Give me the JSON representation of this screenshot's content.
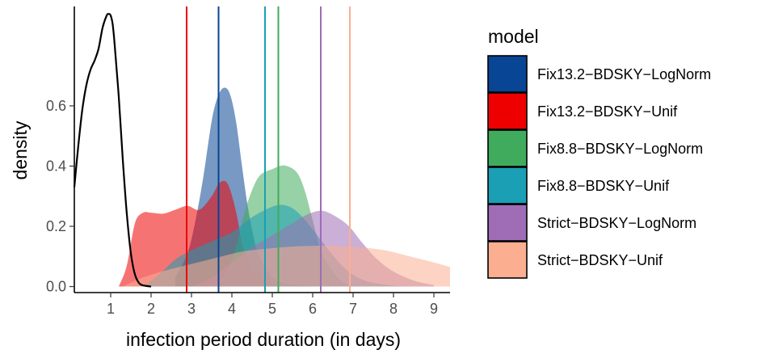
{
  "chart_data": {
    "type": "area",
    "xlabel": "infection period duration (in days)",
    "ylabel": "density",
    "xlim": [
      0.1,
      9.4
    ],
    "ylim": [
      -0.02,
      0.93
    ],
    "x_ticks": [
      1,
      2,
      3,
      4,
      5,
      6,
      7,
      8,
      9
    ],
    "x_tick_labels": [
      "1",
      "2",
      "3",
      "4",
      "5",
      "6",
      "7",
      "8",
      "9"
    ],
    "y_ticks": [
      0.0,
      0.2,
      0.4,
      0.6
    ],
    "y_tick_labels": [
      "0.0",
      "0.2",
      "0.4",
      "0.6"
    ],
    "grid": false,
    "legend": {
      "title": "model",
      "position": "right"
    },
    "series": [
      {
        "name": "Fix13.2−BDSKY−LogNorm",
        "color": "#084594",
        "vline": 3.67,
        "x": [
          2.6,
          2.9,
          3.1,
          3.3,
          3.5,
          3.65,
          3.8,
          3.95,
          4.1,
          4.25,
          4.4,
          4.6,
          4.8,
          5.0,
          5.3,
          5.6,
          6.0
        ],
        "y": [
          0.03,
          0.11,
          0.22,
          0.37,
          0.55,
          0.63,
          0.66,
          0.64,
          0.55,
          0.4,
          0.26,
          0.13,
          0.07,
          0.03,
          0.01,
          0.004,
          0.0
        ]
      },
      {
        "name": "Fix13.2−BDSKY−Unif",
        "color": "#ee0000",
        "vline": 2.88,
        "x": [
          1.2,
          1.4,
          1.6,
          1.8,
          2.0,
          2.3,
          2.6,
          2.9,
          3.2,
          3.5,
          3.7,
          3.9,
          4.1,
          4.3,
          4.6,
          5.0,
          5.4
        ],
        "y": [
          0.0,
          0.07,
          0.21,
          0.245,
          0.245,
          0.242,
          0.255,
          0.268,
          0.255,
          0.3,
          0.345,
          0.34,
          0.25,
          0.12,
          0.04,
          0.005,
          0.0
        ]
      },
      {
        "name": "Fix8.8−BDSKY−LogNorm",
        "color": "#41ab5d",
        "vline": 5.15,
        "x": [
          3.3,
          3.6,
          3.9,
          4.1,
          4.3,
          4.5,
          4.7,
          5.0,
          5.3,
          5.6,
          5.8,
          6.0,
          6.2,
          6.5,
          6.8,
          7.2
        ],
        "y": [
          0.0,
          0.01,
          0.06,
          0.13,
          0.24,
          0.32,
          0.37,
          0.39,
          0.402,
          0.38,
          0.32,
          0.22,
          0.12,
          0.05,
          0.01,
          0.0
        ]
      },
      {
        "name": "Fix8.8−BDSKY−Unif",
        "color": "#1a9fb5",
        "vline": 4.82,
        "x": [
          1.8,
          2.2,
          2.6,
          3.0,
          3.5,
          4.0,
          4.5,
          5.0,
          5.3,
          5.6,
          6.0,
          6.4,
          6.8,
          7.2,
          7.6,
          8.0,
          8.5
        ],
        "y": [
          0.0,
          0.04,
          0.09,
          0.12,
          0.15,
          0.18,
          0.23,
          0.265,
          0.27,
          0.25,
          0.19,
          0.12,
          0.06,
          0.025,
          0.01,
          0.003,
          0.0
        ]
      },
      {
        "name": "Strict−BDSKY−LogNorm",
        "color": "#9e6db5",
        "vline": 6.2,
        "x": [
          3.0,
          3.5,
          4.0,
          4.5,
          5.0,
          5.5,
          5.8,
          6.1,
          6.3,
          6.6,
          6.9,
          7.2,
          7.6,
          8.0,
          8.5,
          9.0
        ],
        "y": [
          0.0,
          0.03,
          0.08,
          0.13,
          0.17,
          0.21,
          0.235,
          0.25,
          0.25,
          0.23,
          0.2,
          0.15,
          0.09,
          0.05,
          0.02,
          0.005
        ]
      },
      {
        "name": "Strict−BDSKY−Unif",
        "color": "#fcae91",
        "vline": 6.92,
        "x": [
          1.3,
          1.8,
          2.4,
          3.0,
          3.6,
          4.2,
          4.8,
          5.4,
          6.0,
          6.6,
          7.2,
          7.8,
          8.4,
          9.0,
          9.4
        ],
        "y": [
          0.0,
          0.03,
          0.055,
          0.075,
          0.095,
          0.115,
          0.125,
          0.132,
          0.135,
          0.135,
          0.13,
          0.12,
          0.1,
          0.08,
          0.065
        ]
      }
    ],
    "reference_curve": {
      "color": "#000000",
      "x": [
        0.1,
        0.2,
        0.3,
        0.4,
        0.5,
        0.6,
        0.7,
        0.8,
        0.9,
        0.95,
        1.0,
        1.05,
        1.1,
        1.2,
        1.3,
        1.4,
        1.5,
        1.6,
        1.7,
        1.8,
        2.0
      ],
      "y": [
        0.33,
        0.47,
        0.59,
        0.67,
        0.72,
        0.75,
        0.79,
        0.86,
        0.9,
        0.905,
        0.9,
        0.87,
        0.8,
        0.63,
        0.42,
        0.24,
        0.11,
        0.04,
        0.012,
        0.004,
        0.0
      ]
    }
  }
}
